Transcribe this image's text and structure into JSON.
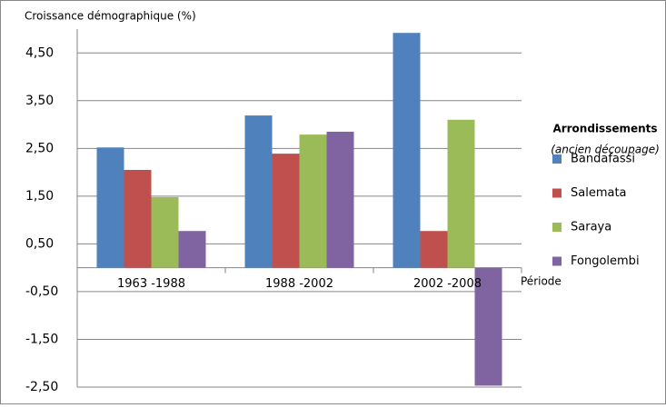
{
  "chart_data": {
    "type": "bar",
    "y_axis_label": "Croissance démographique (%)",
    "x_axis_label": "Période",
    "legend_title": "Arrondissements",
    "legend_subtitle": "(ancien découpage)",
    "categories": [
      "1963 -1988",
      "1988 -2002",
      "2002 -2008"
    ],
    "series": [
      {
        "name": "Bandafassi",
        "color": "#4f81bd",
        "values": [
          2.52,
          3.19,
          4.92
        ]
      },
      {
        "name": "Salemata",
        "color": "#c0504d",
        "values": [
          2.05,
          2.39,
          0.77
        ]
      },
      {
        "name": "Saraya",
        "color": "#9bbb59",
        "values": [
          1.48,
          2.79,
          3.1
        ]
      },
      {
        "name": "Fongolembi",
        "color": "#8064a2",
        "values": [
          0.77,
          2.85,
          -2.47
        ]
      }
    ],
    "ylim": [
      -2.5,
      5.0
    ],
    "yticks": [
      {
        "value": -2.5,
        "label": "-2,50"
      },
      {
        "value": -1.5,
        "label": "-1,50"
      },
      {
        "value": -0.5,
        "label": "-0,50"
      },
      {
        "value": 0.5,
        "label": "0,50"
      },
      {
        "value": 1.5,
        "label": "1,50"
      },
      {
        "value": 2.5,
        "label": "2,50"
      },
      {
        "value": 3.5,
        "label": "3,50"
      },
      {
        "value": 4.5,
        "label": "4,50"
      }
    ],
    "grid": true,
    "legend": "right"
  }
}
